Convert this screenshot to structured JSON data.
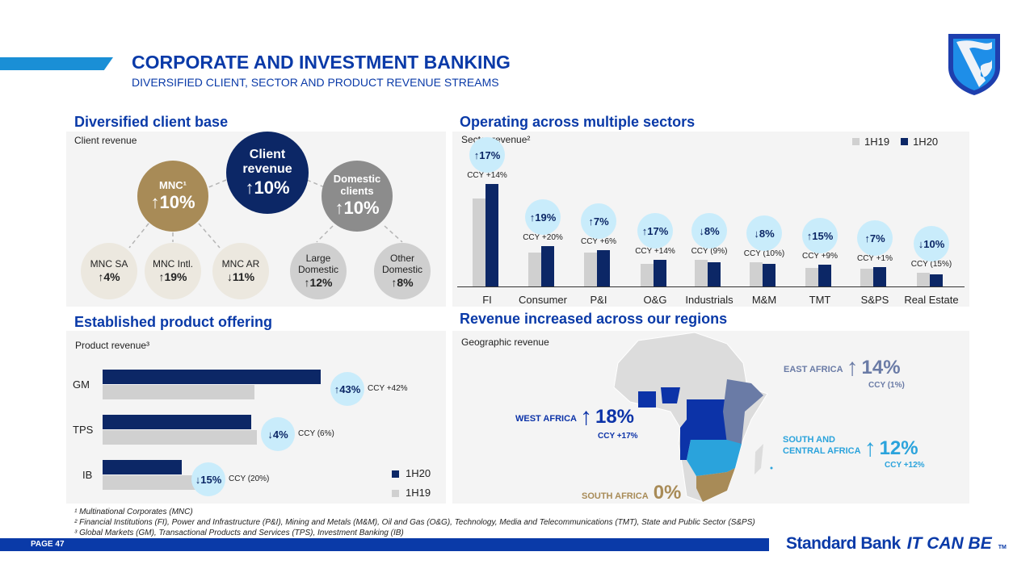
{
  "header": {
    "title": "CORPORATE AND INVESTMENT BANKING",
    "subtitle": "DIVERSIFIED CLIENT, SECTOR AND PRODUCT REVENUE STREAMS"
  },
  "colors": {
    "navy": "#0c2766",
    "blue": "#0a3aa8",
    "gold": "#a88b57",
    "gray": "#8c8c8c",
    "light_gray": "#cfcfcf",
    "bubble": "#c9ecfb",
    "west": "#0c33a8",
    "east": "#6a7ba6",
    "south_central": "#2aa3dc",
    "south": "#a88b57"
  },
  "clients": {
    "section_title": "Diversified client base",
    "panel_label": "Client revenue",
    "root": {
      "label_line1": "Client",
      "label_line2": "revenue",
      "value": "↑10%"
    },
    "mnc": {
      "label": "MNC¹",
      "value": "↑10%"
    },
    "domestic": {
      "label_line1": "Domestic",
      "label_line2": "clients",
      "value": "↑10%"
    },
    "children": [
      {
        "label": "MNC SA",
        "value": "↑4%"
      },
      {
        "label": "MNC Intl.",
        "value": "↑19%"
      },
      {
        "label": "MNC AR",
        "value": "↓11%"
      },
      {
        "label": "Large Domestic",
        "value": "↑12%"
      },
      {
        "label": "Other Domestic",
        "value": "↑8%"
      }
    ]
  },
  "chart_data": [
    {
      "type": "bar",
      "title": "Operating across multiple sectors",
      "subtitle": "Sector revenue²",
      "categories": [
        "FI",
        "Consumer",
        "P&I",
        "O&G",
        "Industrials",
        "M&M",
        "TMT",
        "S&PS",
        "Real Estate"
      ],
      "series": [
        {
          "name": "1H19",
          "color": "#d0d0d0",
          "values": [
            109,
            42,
            42,
            28,
            33,
            30,
            23,
            22,
            17
          ]
        },
        {
          "name": "1H20",
          "color": "#0c2766",
          "values": [
            127,
            50,
            45,
            33,
            30,
            28,
            27,
            24,
            15
          ]
        }
      ],
      "growth": [
        "↑17%",
        "↑19%",
        "↑7%",
        "↑17%",
        "↓8%",
        "↓8%",
        "↑15%",
        "↑7%",
        "↓10%"
      ],
      "ccy": [
        "CCY +14%",
        "CCY +20%",
        "CCY +6%",
        "CCY +14%",
        "CCY (9%)",
        "CCY (10%)",
        "CCY +9%",
        "CCY +1%",
        "CCY (15%)"
      ],
      "legend": "top-right",
      "grid": false
    },
    {
      "type": "bar",
      "orientation": "horizontal",
      "title": "Established product offering",
      "subtitle": "Product revenue³",
      "categories": [
        "GM",
        "TPS",
        "IB"
      ],
      "series": [
        {
          "name": "1H20",
          "color": "#0c2766",
          "values": [
            270,
            184,
            98
          ]
        },
        {
          "name": "1H19",
          "color": "#d0d0d0",
          "values": [
            188,
            191,
            115
          ]
        }
      ],
      "growth": [
        "↑43%",
        "↓4%",
        "↓15%"
      ],
      "ccy": [
        "CCY +42%",
        "CCY (6%)",
        "CCY (20%)"
      ],
      "legend": "bottom-right",
      "grid": false
    }
  ],
  "regions": {
    "section_title": "Revenue increased across our regions",
    "panel_label": "Geographic revenue",
    "east": {
      "name": "EAST AFRICA",
      "value": "14%",
      "ccy": "CCY (1%)"
    },
    "west": {
      "name": "WEST AFRICA",
      "value": "18%",
      "ccy": "CCY +17%"
    },
    "south_central": {
      "name_line1": "SOUTH AND",
      "name_line2": "CENTRAL AFRICA",
      "value": "12%",
      "ccy": "CCY +12%"
    },
    "south": {
      "name": "SOUTH AFRICA",
      "value": "0%"
    }
  },
  "footnotes": [
    "¹ Multinational Corporates (MNC)",
    "² Financial Institutions (FI), Power and Infrastructure (P&I), Mining and Metals (M&M), Oil and Gas (O&G), Technology, Media and Telecommunications (TMT), State and Public Sector (S&PS)",
    "³ Global Markets (GM), Transactional Products and Services (TPS), Investment Banking (IB)"
  ],
  "footer": {
    "page": "PAGE 47",
    "brand": "Standard Bank",
    "tagline": "IT CAN BE",
    "tm": "TM"
  }
}
